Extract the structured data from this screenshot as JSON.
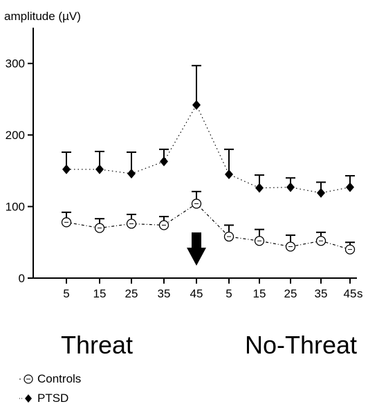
{
  "chart_data": {
    "type": "line",
    "ylabel": "amplitude (µV)",
    "x_tick_labels": [
      "5",
      "15",
      "25",
      "35",
      "45",
      "5",
      "15",
      "25",
      "35",
      "45"
    ],
    "x_unit": "s",
    "ylim": [
      0,
      350
    ],
    "y_ticks": [
      0,
      100,
      200,
      300
    ],
    "groups": [
      {
        "label": "Threat",
        "x_range": [
          "5",
          "45"
        ]
      },
      {
        "label": "No-Threat",
        "x_range": [
          "5",
          "45"
        ]
      }
    ],
    "series": [
      {
        "name": "PTSD",
        "marker": "filled-diamond",
        "line": "dotted",
        "color": "#000000",
        "values": [
          152,
          152,
          146,
          163,
          242,
          145,
          126,
          127,
          119,
          127
        ],
        "error_upper": [
          176,
          177,
          176,
          180,
          297,
          180,
          144,
          140,
          134,
          143
        ]
      },
      {
        "name": "Controls",
        "marker": "open-circle",
        "line": "dash-dot",
        "color": "#000000",
        "values": [
          78,
          70,
          76,
          74,
          104,
          58,
          52,
          44,
          52,
          40
        ],
        "error_upper": [
          92,
          83,
          89,
          86,
          121,
          74,
          68,
          60,
          64,
          50
        ]
      }
    ],
    "annotation": {
      "type": "down-arrow",
      "at_index": 4
    },
    "grid": false,
    "legend_position": "bottom-left"
  }
}
